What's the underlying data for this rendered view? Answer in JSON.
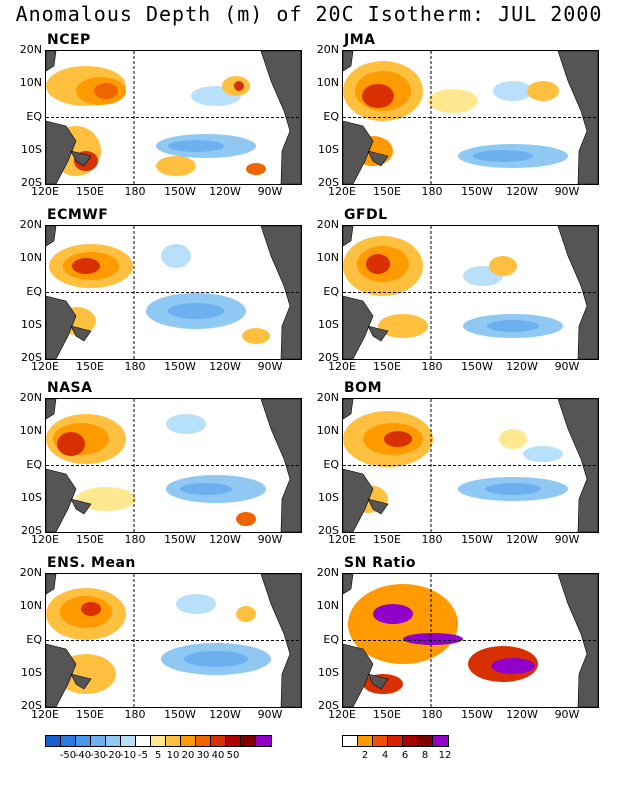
{
  "title": "Anomalous Depth (m) of 20C Isotherm: JUL 2000",
  "panels": [
    {
      "name": "NCEP"
    },
    {
      "name": "JMA"
    },
    {
      "name": "ECMWF"
    },
    {
      "name": "GFDL"
    },
    {
      "name": "NASA"
    },
    {
      "name": "BOM"
    },
    {
      "name": "ENS. Mean"
    },
    {
      "name": "SN Ratio"
    }
  ],
  "lat_labels": [
    "20N",
    "10N",
    "EQ",
    "10S",
    "20S"
  ],
  "lon_labels": [
    "120E",
    "150E",
    "180",
    "150W",
    "120W",
    "90W"
  ],
  "colorbar_left": {
    "colors": [
      "#1560d0",
      "#2a7ae0",
      "#4a96ea",
      "#6cb0f0",
      "#90c8f4",
      "#b8e0fa",
      "#ffffff",
      "#ffe890",
      "#ffc040",
      "#ff9a00",
      "#f06400",
      "#d83000",
      "#b00000",
      "#800000",
      "#9000c8"
    ],
    "labels": [
      "-50",
      "-40",
      "-30",
      "-20",
      "-10",
      "-5",
      "5",
      "10",
      "20",
      "30",
      "40",
      "50"
    ]
  },
  "colorbar_right": {
    "colors": [
      "#ffffff",
      "#ff9a00",
      "#f05000",
      "#d82000",
      "#a80000",
      "#800000",
      "#9000c8"
    ],
    "labels": [
      "2",
      "4",
      "6",
      "8",
      "12"
    ]
  }
}
